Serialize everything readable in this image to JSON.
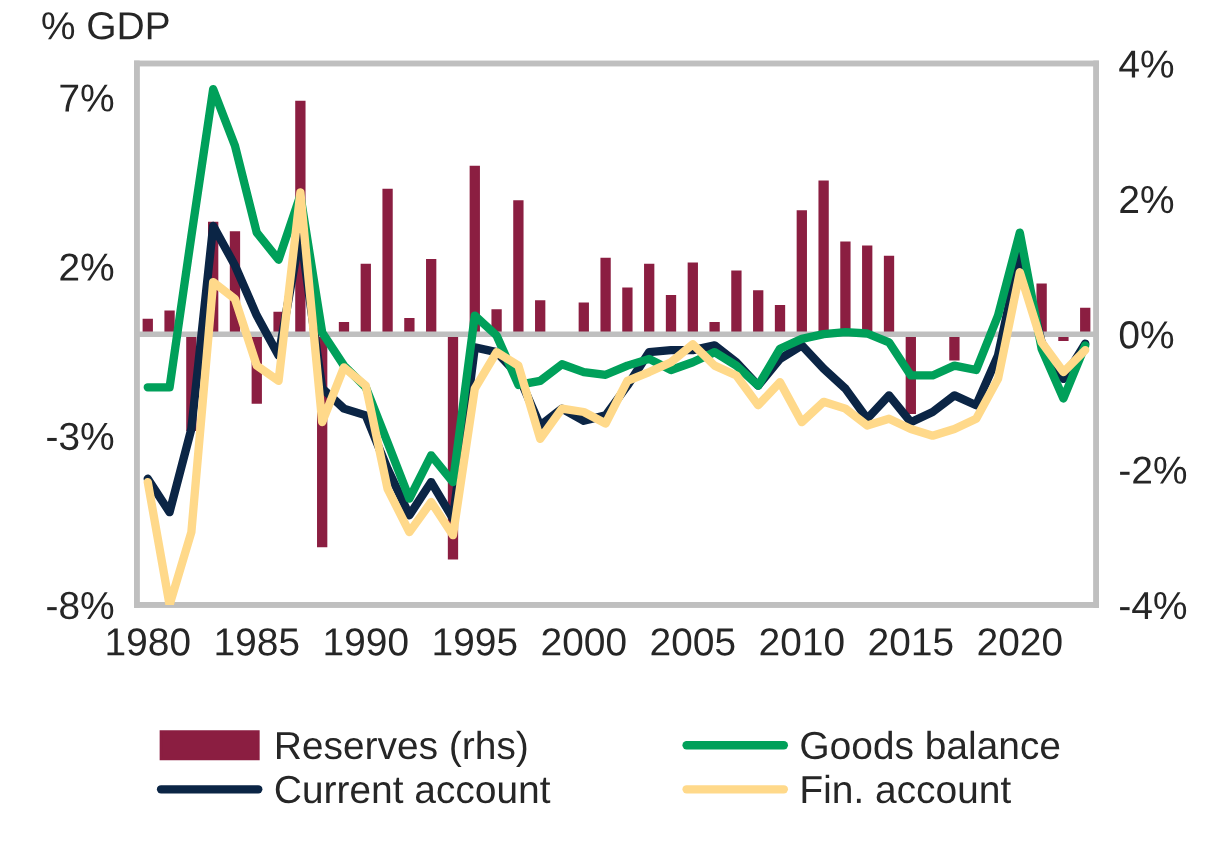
{
  "chart_data": {
    "type": "line",
    "ylabel": "% GDP",
    "x": [
      1980,
      1981,
      1982,
      1983,
      1984,
      1985,
      1986,
      1987,
      1988,
      1989,
      1990,
      1991,
      1992,
      1993,
      1994,
      1995,
      1996,
      1997,
      1998,
      1999,
      2000,
      2001,
      2002,
      2003,
      2004,
      2005,
      2006,
      2007,
      2008,
      2009,
      2010,
      2011,
      2012,
      2013,
      2014,
      2015,
      2016,
      2017,
      2018,
      2019,
      2020,
      2021,
      2022,
      2023
    ],
    "series": [
      {
        "name": "Reserves (rhs)",
        "type": "bar",
        "axis": "y2",
        "color": "#8b1e41",
        "values": [
          0.25,
          0.37,
          -1.45,
          1.68,
          1.54,
          -1.05,
          0.35,
          3.47,
          -3.17,
          0.2,
          1.06,
          2.17,
          0.26,
          1.13,
          -3.35,
          2.51,
          0.39,
          2.0,
          0.52,
          null,
          0.49,
          1.15,
          0.71,
          1.06,
          0.6,
          1.08,
          0.2,
          0.96,
          0.67,
          0.45,
          1.85,
          2.29,
          1.39,
          1.33,
          1.18,
          -1.2,
          null,
          -0.41,
          null,
          null,
          null,
          0.77,
          -0.12,
          0.41
        ]
      },
      {
        "name": "Current account",
        "color": "#0b2545",
        "values": [
          -4.27,
          -5.26,
          -2.8,
          3.2,
          2.03,
          0.55,
          -0.63,
          3.0,
          -1.6,
          -2.2,
          -2.4,
          -3.98,
          -5.35,
          -4.37,
          -5.45,
          -0.39,
          -0.53,
          -1.22,
          -2.7,
          -2.2,
          -2.56,
          -2.4,
          -1.52,
          -0.53,
          -0.47,
          -0.47,
          -0.33,
          -0.83,
          -1.52,
          -0.73,
          -0.33,
          -1.02,
          -1.61,
          -2.5,
          -1.81,
          -2.6,
          -2.3,
          -1.81,
          -2.1,
          -0.63,
          2.36,
          -0.24,
          -1.32,
          -0.28
        ]
      },
      {
        "name": "Goods balance",
        "color": "#00a05a",
        "values": [
          -1.57,
          -1.57,
          2.9,
          7.24,
          5.57,
          3.0,
          2.2,
          4.1,
          0.05,
          -0.93,
          -1.57,
          -3.2,
          -4.86,
          -3.58,
          -4.37,
          0.55,
          -0.04,
          -1.5,
          -1.38,
          -0.89,
          -1.12,
          -1.2,
          -0.93,
          -0.73,
          -1.06,
          -0.83,
          -0.53,
          -0.93,
          -1.52,
          -0.43,
          -0.14,
          0,
          0.06,
          0.02,
          -0.24,
          -1.22,
          -1.22,
          -0.93,
          -1.06,
          0.55,
          3.0,
          -0.43,
          -1.9,
          -0.33
        ]
      },
      {
        "name": "Fin. account",
        "color": "#ffd98a",
        "values": [
          -4.37,
          -8.0,
          -5.85,
          1.54,
          1.04,
          -0.93,
          -1.38,
          4.19,
          -2.6,
          -0.98,
          -1.52,
          -4.57,
          -5.85,
          -4.96,
          -5.94,
          -1.61,
          -0.53,
          -0.93,
          -3.09,
          -2.2,
          -2.3,
          -2.64,
          -1.38,
          -1.12,
          -0.83,
          -0.3,
          -0.93,
          -1.22,
          -2.1,
          -1.42,
          -2.6,
          -2.0,
          -2.2,
          -2.7,
          -2.5,
          -2.8,
          -3.0,
          -2.8,
          -2.5,
          -1.32,
          1.83,
          -0.24,
          -1.12,
          -0.47
        ]
      }
    ],
    "xlim": [
      1979.5,
      2023.5
    ],
    "xticks": [
      1980,
      1985,
      1990,
      1995,
      2000,
      2005,
      2010,
      2015,
      2020
    ],
    "ylim": [
      -8,
      8
    ],
    "yticks": [
      {
        "value": -8,
        "label": "-8%"
      },
      {
        "value": -3,
        "label": "-3%"
      },
      {
        "value": 2,
        "label": "2%"
      },
      {
        "value": 7,
        "label": "7%"
      }
    ],
    "y2lim": [
      -4,
      4
    ],
    "y2ticks": [
      {
        "value": -4,
        "label": "-4%"
      },
      {
        "value": -2,
        "label": "-2%"
      },
      {
        "value": 0,
        "label": "0%"
      },
      {
        "value": 2,
        "label": "2%"
      },
      {
        "value": 4,
        "label": "4%"
      }
    ],
    "ref_lines": [
      {
        "axis": "y",
        "value": 0,
        "color": "#bfbfbf"
      }
    ],
    "line_style": "solid",
    "marker": "none",
    "grid": false,
    "legend": "bottom"
  }
}
